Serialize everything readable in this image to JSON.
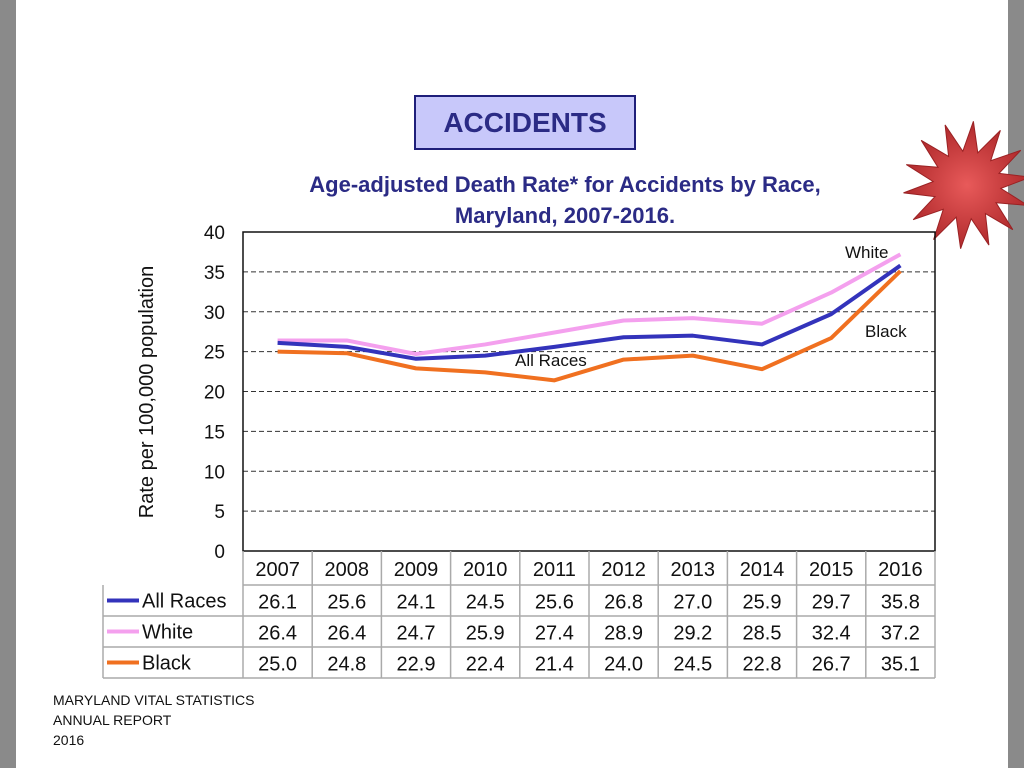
{
  "header": {
    "badge": "ACCIDENTS"
  },
  "footer": {
    "lines": [
      "MARYLAND VITAL STATISTICS",
      "ANNUAL REPORT",
      "2016"
    ]
  },
  "decoration": {
    "icon": "starburst-icon",
    "color": "#c83a3c"
  },
  "chart_data": {
    "type": "line",
    "title": "Age-adjusted Death Rate* for Accidents by Race,",
    "subtitle": "Maryland, 2007-2016.",
    "ylabel": "Rate per 100,000 population",
    "xlabel": "",
    "ylim": [
      0,
      40
    ],
    "yticks": [
      "0",
      "5",
      "10",
      "15",
      "20",
      "25",
      "30",
      "35",
      "40"
    ],
    "grid": "horizontal dashed",
    "categories": [
      "2007",
      "2008",
      "2009",
      "2010",
      "2011",
      "2012",
      "2013",
      "2014",
      "2015",
      "2016"
    ],
    "series": [
      {
        "name": "All Races",
        "color": "#3333bb",
        "values": [
          26.1,
          25.6,
          24.1,
          24.5,
          25.6,
          26.8,
          27.0,
          25.9,
          29.7,
          35.8
        ],
        "labels": [
          "26.1",
          "25.6",
          "24.1",
          "24.5",
          "25.6",
          "26.8",
          "27.0",
          "25.9",
          "29.7",
          "35.8"
        ]
      },
      {
        "name": "White",
        "color": "#f4a0ee",
        "values": [
          26.4,
          26.4,
          24.7,
          25.9,
          27.4,
          28.9,
          29.2,
          28.5,
          32.4,
          37.2
        ],
        "labels": [
          "26.4",
          "26.4",
          "24.7",
          "25.9",
          "27.4",
          "28.9",
          "29.2",
          "28.5",
          "32.4",
          "37.2"
        ]
      },
      {
        "name": "Black",
        "color": "#f07020",
        "values": [
          25.0,
          24.8,
          22.9,
          22.4,
          21.4,
          24.0,
          24.5,
          22.8,
          26.7,
          35.1
        ],
        "labels": [
          "25.0",
          "24.8",
          "22.9",
          "22.4",
          "21.4",
          "24.0",
          "24.5",
          "22.8",
          "26.7",
          "35.1"
        ]
      }
    ],
    "annotations": [
      "White",
      "Black",
      "All Races"
    ],
    "data_table": true
  }
}
